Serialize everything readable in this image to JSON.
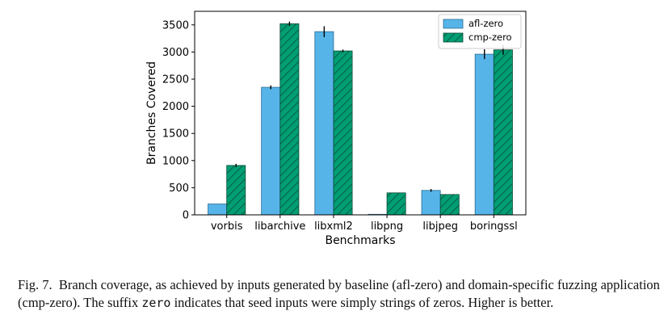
{
  "chart_data": {
    "type": "bar",
    "categories": [
      "vorbis",
      "libarchive",
      "libxml2",
      "libpng",
      "libjpeg",
      "boringssl"
    ],
    "series": [
      {
        "name": "afl-zero",
        "values": [
          200,
          2350,
          3375,
          10,
          450,
          2960
        ],
        "errors": [
          0,
          35,
          100,
          0,
          25,
          90
        ],
        "color": "#56b4e9",
        "hatch": false
      },
      {
        "name": "cmp-zero",
        "values": [
          910,
          3520,
          3020,
          405,
          375,
          3040
        ],
        "errors": [
          30,
          40,
          25,
          0,
          0,
          90
        ],
        "color": "#009e73",
        "hatch": true
      }
    ],
    "xlabel": "Benchmarks",
    "ylabel": "Branches Covered",
    "ylim": [
      0,
      3750
    ],
    "yticks": [
      0,
      500,
      1000,
      1500,
      2000,
      2500,
      3000,
      3500
    ],
    "grid": "horizontal dashed",
    "legend": "top-right"
  },
  "caption": {
    "label": "Fig. 7.",
    "part1": "Branch coverage, as achieved by inputs generated by baseline (afl-zero) and domain-specific fuzzing application (cmp-zero). The suffix ",
    "code": "zero",
    "part2": " indicates that seed inputs were simply strings of zeros. Higher is better."
  }
}
